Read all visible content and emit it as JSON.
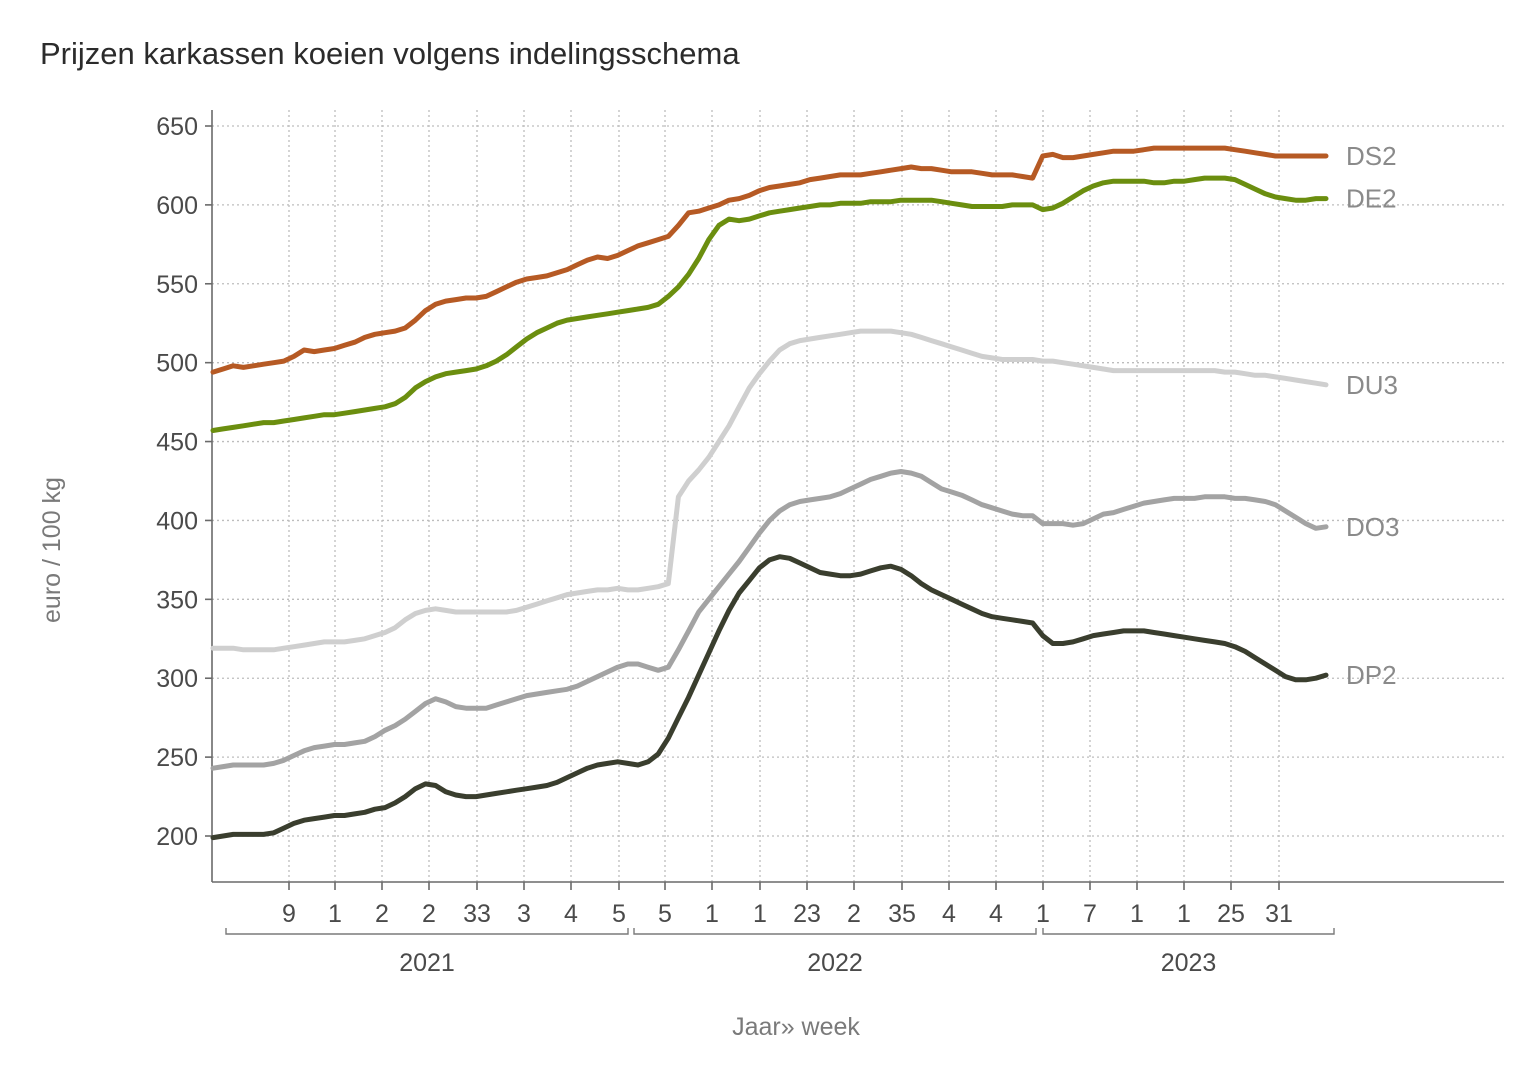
{
  "chart_data": {
    "type": "line",
    "title": "Prijzen karkassen koeien volgens indelingsschema",
    "xlabel": "Jaar» week",
    "ylabel": "euro / 100 kg",
    "ylim": [
      170,
      660
    ],
    "yticks": [
      200,
      250,
      300,
      350,
      400,
      450,
      500,
      550,
      600,
      650
    ],
    "grid": true,
    "legend": "inline-right",
    "week_tick_labels": [
      "9",
      "1",
      "2",
      "2",
      "33",
      "3",
      "4",
      "5",
      "5",
      "1",
      "1",
      "23",
      "2",
      "35",
      "4",
      "4",
      "1",
      "7",
      "1",
      "1",
      "25",
      "31"
    ],
    "years": [
      "2021",
      "2022",
      "2023"
    ],
    "series": [
      {
        "name": "DS2",
        "color": "#b65a24",
        "values": [
          494,
          496,
          498,
          497,
          498,
          499,
          500,
          501,
          504,
          508,
          507,
          508,
          509,
          511,
          513,
          516,
          518,
          519,
          520,
          522,
          527,
          533,
          537,
          539,
          540,
          541,
          541,
          542,
          545,
          548,
          551,
          553,
          554,
          555,
          557,
          559,
          562,
          565,
          567,
          566,
          568,
          571,
          574,
          576,
          578,
          580,
          587,
          595,
          596,
          598,
          600,
          603,
          604,
          606,
          609,
          611,
          612,
          613,
          614,
          616,
          617,
          618,
          619,
          619,
          619,
          620,
          621,
          622,
          623,
          624,
          623,
          623,
          622,
          621,
          621,
          621,
          620,
          619,
          619,
          619,
          618,
          617,
          631,
          632,
          630,
          630,
          631,
          632,
          633,
          634,
          634,
          634,
          635,
          636,
          636,
          636,
          636,
          636,
          636,
          636,
          636,
          635,
          634,
          633,
          632,
          631,
          631,
          631,
          631,
          631,
          631
        ]
      },
      {
        "name": "DE2",
        "color": "#6b8e0f",
        "values": [
          457,
          458,
          459,
          460,
          461,
          462,
          462,
          463,
          464,
          465,
          466,
          467,
          467,
          468,
          469,
          470,
          471,
          472,
          474,
          478,
          484,
          488,
          491,
          493,
          494,
          495,
          496,
          498,
          501,
          505,
          510,
          515,
          519,
          522,
          525,
          527,
          528,
          529,
          530,
          531,
          532,
          533,
          534,
          535,
          537,
          542,
          548,
          556,
          566,
          578,
          587,
          591,
          590,
          591,
          593,
          595,
          596,
          597,
          598,
          599,
          600,
          600,
          601,
          601,
          601,
          602,
          602,
          602,
          603,
          603,
          603,
          603,
          602,
          601,
          600,
          599,
          599,
          599,
          599,
          600,
          600,
          600,
          597,
          598,
          601,
          605,
          609,
          612,
          614,
          615,
          615,
          615,
          615,
          614,
          614,
          615,
          615,
          616,
          617,
          617,
          617,
          616,
          613,
          610,
          607,
          605,
          604,
          603,
          603,
          604,
          604
        ]
      },
      {
        "name": "DU3",
        "color": "#cfcfcf",
        "values": [
          319,
          319,
          319,
          318,
          318,
          318,
          318,
          319,
          320,
          321,
          322,
          323,
          323,
          323,
          324,
          325,
          327,
          329,
          332,
          337,
          341,
          343,
          344,
          343,
          342,
          342,
          342,
          342,
          342,
          342,
          343,
          345,
          347,
          349,
          351,
          353,
          354,
          355,
          356,
          356,
          357,
          356,
          356,
          357,
          358,
          360,
          415,
          425,
          432,
          440,
          450,
          460,
          472,
          484,
          493,
          501,
          508,
          512,
          514,
          515,
          516,
          517,
          518,
          519,
          520,
          520,
          520,
          520,
          519,
          518,
          516,
          514,
          512,
          510,
          508,
          506,
          504,
          503,
          502,
          502,
          502,
          502,
          501,
          501,
          500,
          499,
          498,
          497,
          496,
          495,
          495,
          495,
          495,
          495,
          495,
          495,
          495,
          495,
          495,
          495,
          494,
          494,
          493,
          492,
          492,
          491,
          490,
          489,
          488,
          487,
          486
        ]
      },
      {
        "name": "DO3",
        "color": "#a3a3a3",
        "values": [
          243,
          244,
          245,
          245,
          245,
          245,
          246,
          248,
          251,
          254,
          256,
          257,
          258,
          258,
          259,
          260,
          263,
          267,
          270,
          274,
          279,
          284,
          287,
          285,
          282,
          281,
          281,
          281,
          283,
          285,
          287,
          289,
          290,
          291,
          292,
          293,
          295,
          298,
          301,
          304,
          307,
          309,
          309,
          307,
          305,
          307,
          318,
          330,
          342,
          350,
          358,
          366,
          374,
          383,
          392,
          400,
          406,
          410,
          412,
          413,
          414,
          415,
          417,
          420,
          423,
          426,
          428,
          430,
          431,
          430,
          428,
          424,
          420,
          418,
          416,
          413,
          410,
          408,
          406,
          404,
          403,
          403,
          398,
          398,
          398,
          397,
          398,
          401,
          404,
          405,
          407,
          409,
          411,
          412,
          413,
          414,
          414,
          414,
          415,
          415,
          415,
          414,
          414,
          413,
          412,
          410,
          406,
          402,
          398,
          395,
          396
        ]
      },
      {
        "name": "DP2",
        "color": "#3a3e2e",
        "values": [
          199,
          200,
          201,
          201,
          201,
          201,
          202,
          205,
          208,
          210,
          211,
          212,
          213,
          213,
          214,
          215,
          217,
          218,
          221,
          225,
          230,
          233,
          232,
          228,
          226,
          225,
          225,
          226,
          227,
          228,
          229,
          230,
          231,
          232,
          234,
          237,
          240,
          243,
          245,
          246,
          247,
          246,
          245,
          247,
          252,
          262,
          275,
          288,
          302,
          316,
          330,
          343,
          354,
          362,
          370,
          375,
          377,
          376,
          373,
          370,
          367,
          366,
          365,
          365,
          366,
          368,
          370,
          371,
          369,
          365,
          360,
          356,
          353,
          350,
          347,
          344,
          341,
          339,
          338,
          337,
          336,
          335,
          327,
          322,
          322,
          323,
          325,
          327,
          328,
          329,
          330,
          330,
          330,
          329,
          328,
          327,
          326,
          325,
          324,
          323,
          322,
          320,
          317,
          313,
          309,
          305,
          301,
          299,
          299,
          300,
          302
        ]
      }
    ]
  }
}
